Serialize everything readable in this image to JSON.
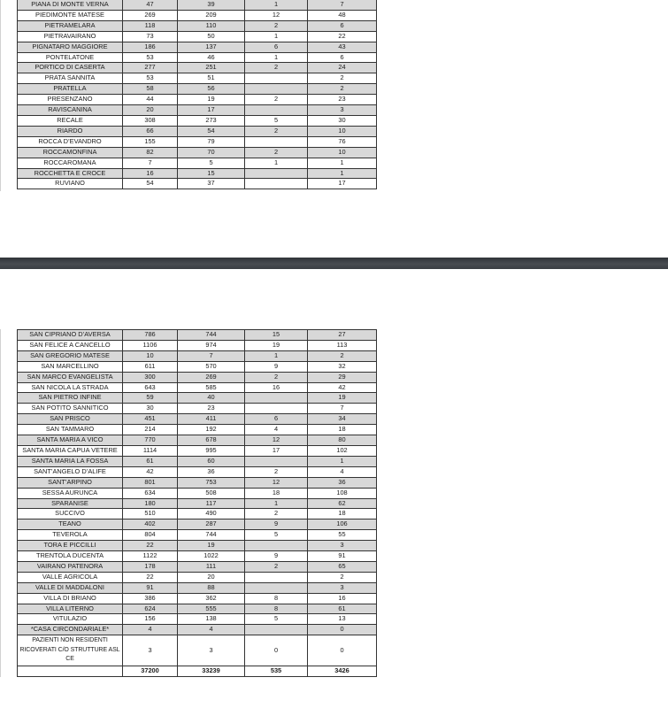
{
  "viewer": {
    "kind": "pdf-document-view",
    "separator_color_top": "#303439",
    "separator_color_mid": "#484c51",
    "separator_color_bottom": "#3a3e43"
  },
  "colors": {
    "row_shade": "#d8d8d8",
    "cell_border": "#333333",
    "text": "#1c1c1c",
    "page_background": "#ffffff"
  },
  "table_page1": {
    "rows": [
      {
        "name": "PIANA DI MONTE VERNA",
        "v1": "47",
        "v2": "39",
        "v3": "1",
        "v4": "7"
      },
      {
        "name": "PIEDIMONTE MATESE",
        "v1": "269",
        "v2": "209",
        "v3": "12",
        "v4": "48"
      },
      {
        "name": "PIETRAMELARA",
        "v1": "118",
        "v2": "110",
        "v3": "2",
        "v4": "6"
      },
      {
        "name": "PIETRAVAIRANO",
        "v1": "73",
        "v2": "50",
        "v3": "1",
        "v4": "22"
      },
      {
        "name": "PIGNATARO MAGGIORE",
        "v1": "186",
        "v2": "137",
        "v3": "6",
        "v4": "43"
      },
      {
        "name": "PONTELATONE",
        "v1": "53",
        "v2": "46",
        "v3": "1",
        "v4": "6"
      },
      {
        "name": "PORTICO DI CASERTA",
        "v1": "277",
        "v2": "251",
        "v3": "2",
        "v4": "24"
      },
      {
        "name": "PRATA SANNITA",
        "v1": "53",
        "v2": "51",
        "v3": "",
        "v4": "2"
      },
      {
        "name": "PRATELLA",
        "v1": "58",
        "v2": "56",
        "v3": "",
        "v4": "2"
      },
      {
        "name": "PRESENZANO",
        "v1": "44",
        "v2": "19",
        "v3": "2",
        "v4": "23"
      },
      {
        "name": "RAVISCANINA",
        "v1": "20",
        "v2": "17",
        "v3": "",
        "v4": "3"
      },
      {
        "name": "RECALE",
        "v1": "308",
        "v2": "273",
        "v3": "5",
        "v4": "30"
      },
      {
        "name": "RIARDO",
        "v1": "66",
        "v2": "54",
        "v3": "2",
        "v4": "10"
      },
      {
        "name": "ROCCA D’EVANDRO",
        "v1": "155",
        "v2": "79",
        "v3": "",
        "v4": "76"
      },
      {
        "name": "ROCCAMONFINA",
        "v1": "82",
        "v2": "70",
        "v3": "2",
        "v4": "10"
      },
      {
        "name": "ROCCAROMANA",
        "v1": "7",
        "v2": "5",
        "v3": "1",
        "v4": "1"
      },
      {
        "name": "ROCCHETTA E CROCE",
        "v1": "16",
        "v2": "15",
        "v3": "",
        "v4": "1"
      },
      {
        "name": "RUVIANO",
        "v1": "54",
        "v2": "37",
        "v3": "",
        "v4": "17"
      }
    ]
  },
  "table_page2": {
    "rows": [
      {
        "name": "SAN CIPRIANO D’AVERSA",
        "v1": "786",
        "v2": "744",
        "v3": "15",
        "v4": "27"
      },
      {
        "name": "SAN FELICE A CANCELLO",
        "v1": "1106",
        "v2": "974",
        "v3": "19",
        "v4": "113"
      },
      {
        "name": "SAN GREGORIO MATESE",
        "v1": "10",
        "v2": "7",
        "v3": "1",
        "v4": "2"
      },
      {
        "name": "SAN MARCELLINO",
        "v1": "611",
        "v2": "570",
        "v3": "9",
        "v4": "32"
      },
      {
        "name": "SAN MARCO EVANGELISTA",
        "v1": "300",
        "v2": "269",
        "v3": "2",
        "v4": "29"
      },
      {
        "name": "SAN NICOLA LA STRADA",
        "v1": "643",
        "v2": "585",
        "v3": "16",
        "v4": "42"
      },
      {
        "name": "SAN PIETRO INFINE",
        "v1": "59",
        "v2": "40",
        "v3": "",
        "v4": "19"
      },
      {
        "name": "SAN POTITO SANNITICO",
        "v1": "30",
        "v2": "23",
        "v3": "",
        "v4": "7"
      },
      {
        "name": "SAN PRISCO",
        "v1": "451",
        "v2": "411",
        "v3": "6",
        "v4": "34"
      },
      {
        "name": "SAN TAMMARO",
        "v1": "214",
        "v2": "192",
        "v3": "4",
        "v4": "18"
      },
      {
        "name": "SANTA MARIA A VICO",
        "v1": "770",
        "v2": "678",
        "v3": "12",
        "v4": "80"
      },
      {
        "name": "SANTA MARIA CAPUA VETERE",
        "v1": "1114",
        "v2": "995",
        "v3": "17",
        "v4": "102"
      },
      {
        "name": "SANTA MARIA LA FOSSA",
        "v1": "61",
        "v2": "60",
        "v3": "",
        "v4": "1"
      },
      {
        "name": "SANT’ANGELO D’ALIFE",
        "v1": "42",
        "v2": "36",
        "v3": "2",
        "v4": "4"
      },
      {
        "name": "SANT’ARPINO",
        "v1": "801",
        "v2": "753",
        "v3": "12",
        "v4": "36"
      },
      {
        "name": "SESSA AURUNCA",
        "v1": "634",
        "v2": "508",
        "v3": "18",
        "v4": "108"
      },
      {
        "name": "SPARANISE",
        "v1": "180",
        "v2": "117",
        "v3": "1",
        "v4": "62"
      },
      {
        "name": "SUCCIVO",
        "v1": "510",
        "v2": "490",
        "v3": "2",
        "v4": "18"
      },
      {
        "name": "TEANO",
        "v1": "402",
        "v2": "287",
        "v3": "9",
        "v4": "106"
      },
      {
        "name": "TEVEROLA",
        "v1": "804",
        "v2": "744",
        "v3": "5",
        "v4": "55"
      },
      {
        "name": "TORA E PICCILLI",
        "v1": "22",
        "v2": "19",
        "v3": "",
        "v4": "3"
      },
      {
        "name": "TRENTOLA DUCENTA",
        "v1": "1122",
        "v2": "1022",
        "v3": "9",
        "v4": "91"
      },
      {
        "name": "VAIRANO PATENORA",
        "v1": "178",
        "v2": "111",
        "v3": "2",
        "v4": "65"
      },
      {
        "name": "VALLE AGRICOLA",
        "v1": "22",
        "v2": "20",
        "v3": "",
        "v4": "2"
      },
      {
        "name": "VALLE DI MADDALONI",
        "v1": "91",
        "v2": "88",
        "v3": "",
        "v4": "3"
      },
      {
        "name": "VILLA DI BRIANO",
        "v1": "386",
        "v2": "362",
        "v3": "8",
        "v4": "16"
      },
      {
        "name": "VILLA LITERNO",
        "v1": "624",
        "v2": "555",
        "v3": "8",
        "v4": "61"
      },
      {
        "name": "VITULAZIO",
        "v1": "156",
        "v2": "138",
        "v3": "5",
        "v4": "13"
      },
      {
        "name": "*CASA CIRCONDARIALE*",
        "v1": "4",
        "v2": "4",
        "v3": "",
        "v4": "0"
      },
      {
        "name": "PAZIENTI NON RESIDENTI\nRICOVERATI C/O STRUTTURE ASL\nCE",
        "v1": "3",
        "v2": "3",
        "v3": "0",
        "v4": "0",
        "multiline": true
      }
    ],
    "totals": {
      "name": "",
      "v1": "37200",
      "v2": "33239",
      "v3": "535",
      "v4": "3426"
    }
  }
}
